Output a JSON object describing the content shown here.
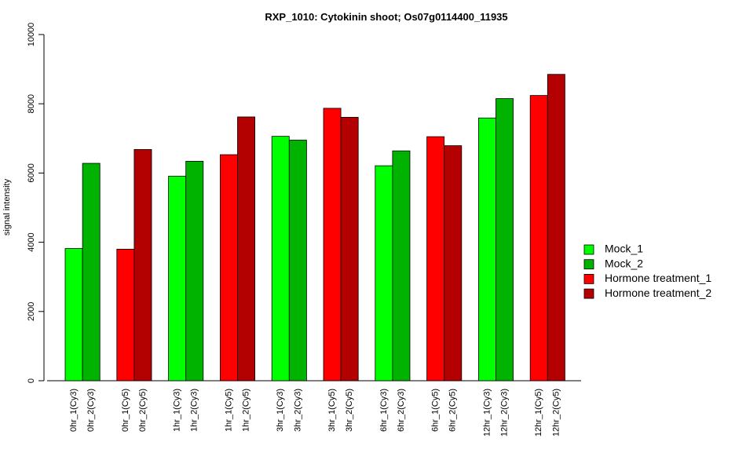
{
  "chart_data": {
    "type": "bar",
    "title": "RXP_1010: Cytokinin shoot; Os07g0114400_11935",
    "xlabel": "",
    "ylabel": "signal intensity",
    "ylim": [
      0,
      10000
    ],
    "yticks": [
      0,
      2000,
      4000,
      6000,
      8000,
      10000
    ],
    "grid": false,
    "legend_position": "right",
    "series_colors": {
      "Mock_1": "#00ff00",
      "Mock_2": "#00b300",
      "Hormone treatment_1": "#ff0000",
      "Hormone treatment_2": "#b30000"
    },
    "bars": [
      {
        "label": "0hr_1(Cy3)",
        "value": 3820,
        "series": "Mock_1"
      },
      {
        "label": "0hr_2(Cy3)",
        "value": 6280,
        "series": "Mock_2"
      },
      {
        "label": "0hr_1(Cy5)",
        "value": 3800,
        "series": "Hormone treatment_1"
      },
      {
        "label": "0hr_2(Cy5)",
        "value": 6680,
        "series": "Hormone treatment_2"
      },
      {
        "label": "1hr_1(Cy3)",
        "value": 5910,
        "series": "Mock_1"
      },
      {
        "label": "1hr_2(Cy3)",
        "value": 6340,
        "series": "Mock_2"
      },
      {
        "label": "1hr_1(Cy5)",
        "value": 6530,
        "series": "Hormone treatment_1"
      },
      {
        "label": "1hr_2(Cy5)",
        "value": 7620,
        "series": "Hormone treatment_2"
      },
      {
        "label": "3hr_1(Cy3)",
        "value": 7060,
        "series": "Mock_1"
      },
      {
        "label": "3hr_2(Cy3)",
        "value": 6950,
        "series": "Mock_2"
      },
      {
        "label": "3hr_1(Cy5)",
        "value": 7870,
        "series": "Hormone treatment_1"
      },
      {
        "label": "3hr_2(Cy5)",
        "value": 7610,
        "series": "Hormone treatment_2"
      },
      {
        "label": "6hr_1(Cy3)",
        "value": 6210,
        "series": "Mock_1"
      },
      {
        "label": "6hr_2(Cy3)",
        "value": 6640,
        "series": "Mock_2"
      },
      {
        "label": "6hr_1(Cy5)",
        "value": 7050,
        "series": "Hormone treatment_1"
      },
      {
        "label": "6hr_2(Cy5)",
        "value": 6790,
        "series": "Hormone treatment_2"
      },
      {
        "label": "12hr_1(Cy3)",
        "value": 7590,
        "series": "Mock_1"
      },
      {
        "label": "12hr_2(Cy3)",
        "value": 8150,
        "series": "Mock_2"
      },
      {
        "label": "12hr_1(Cy5)",
        "value": 8240,
        "series": "Hormone treatment_1"
      },
      {
        "label": "12hr_2(Cy5)",
        "value": 8850,
        "series": "Hormone treatment_2"
      }
    ],
    "legend": [
      "Mock_1",
      "Mock_2",
      "Hormone treatment_1",
      "Hormone treatment_2"
    ]
  }
}
